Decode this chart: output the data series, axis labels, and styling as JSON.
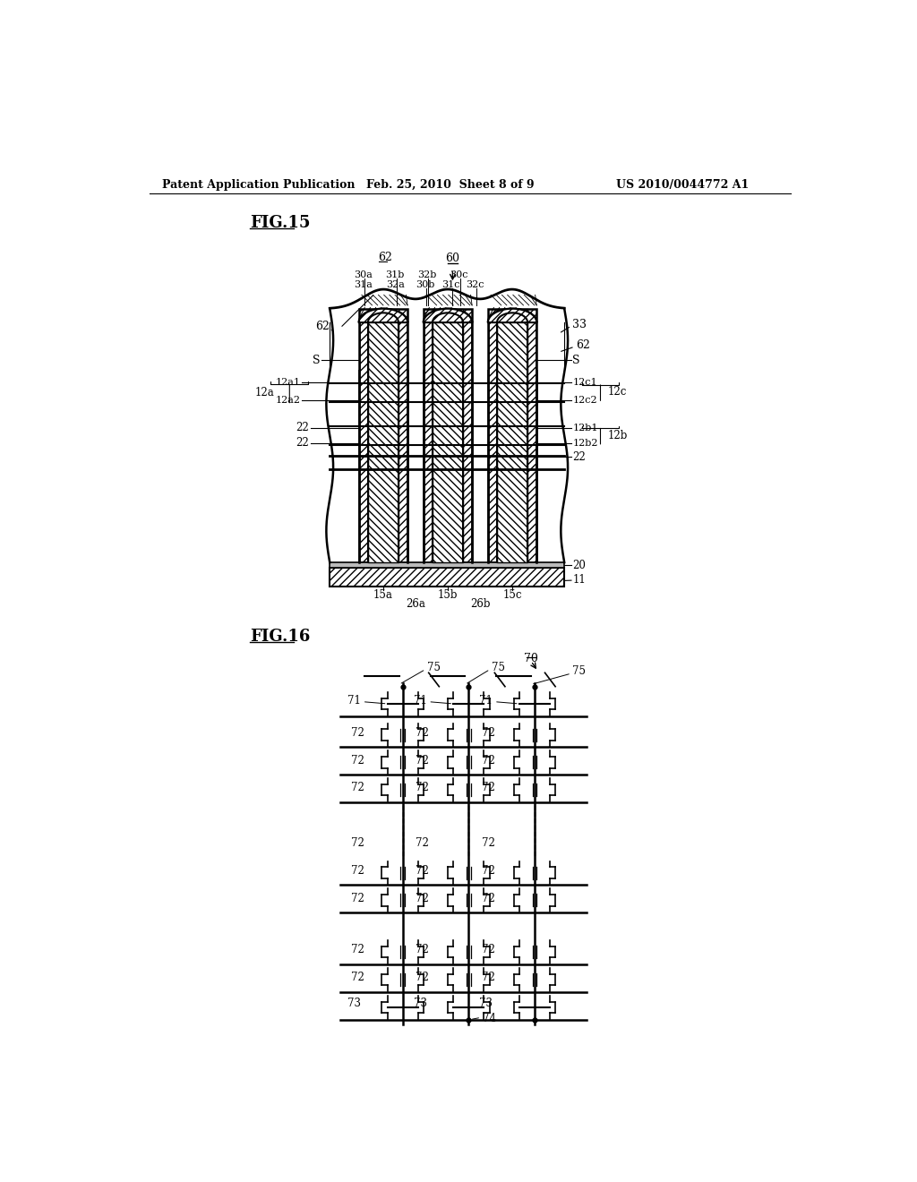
{
  "bg_color": "#ffffff",
  "header_left": "Patent Application Publication",
  "header_mid": "Feb. 25, 2010  Sheet 8 of 9",
  "header_right": "US 2010/0044772 A1"
}
